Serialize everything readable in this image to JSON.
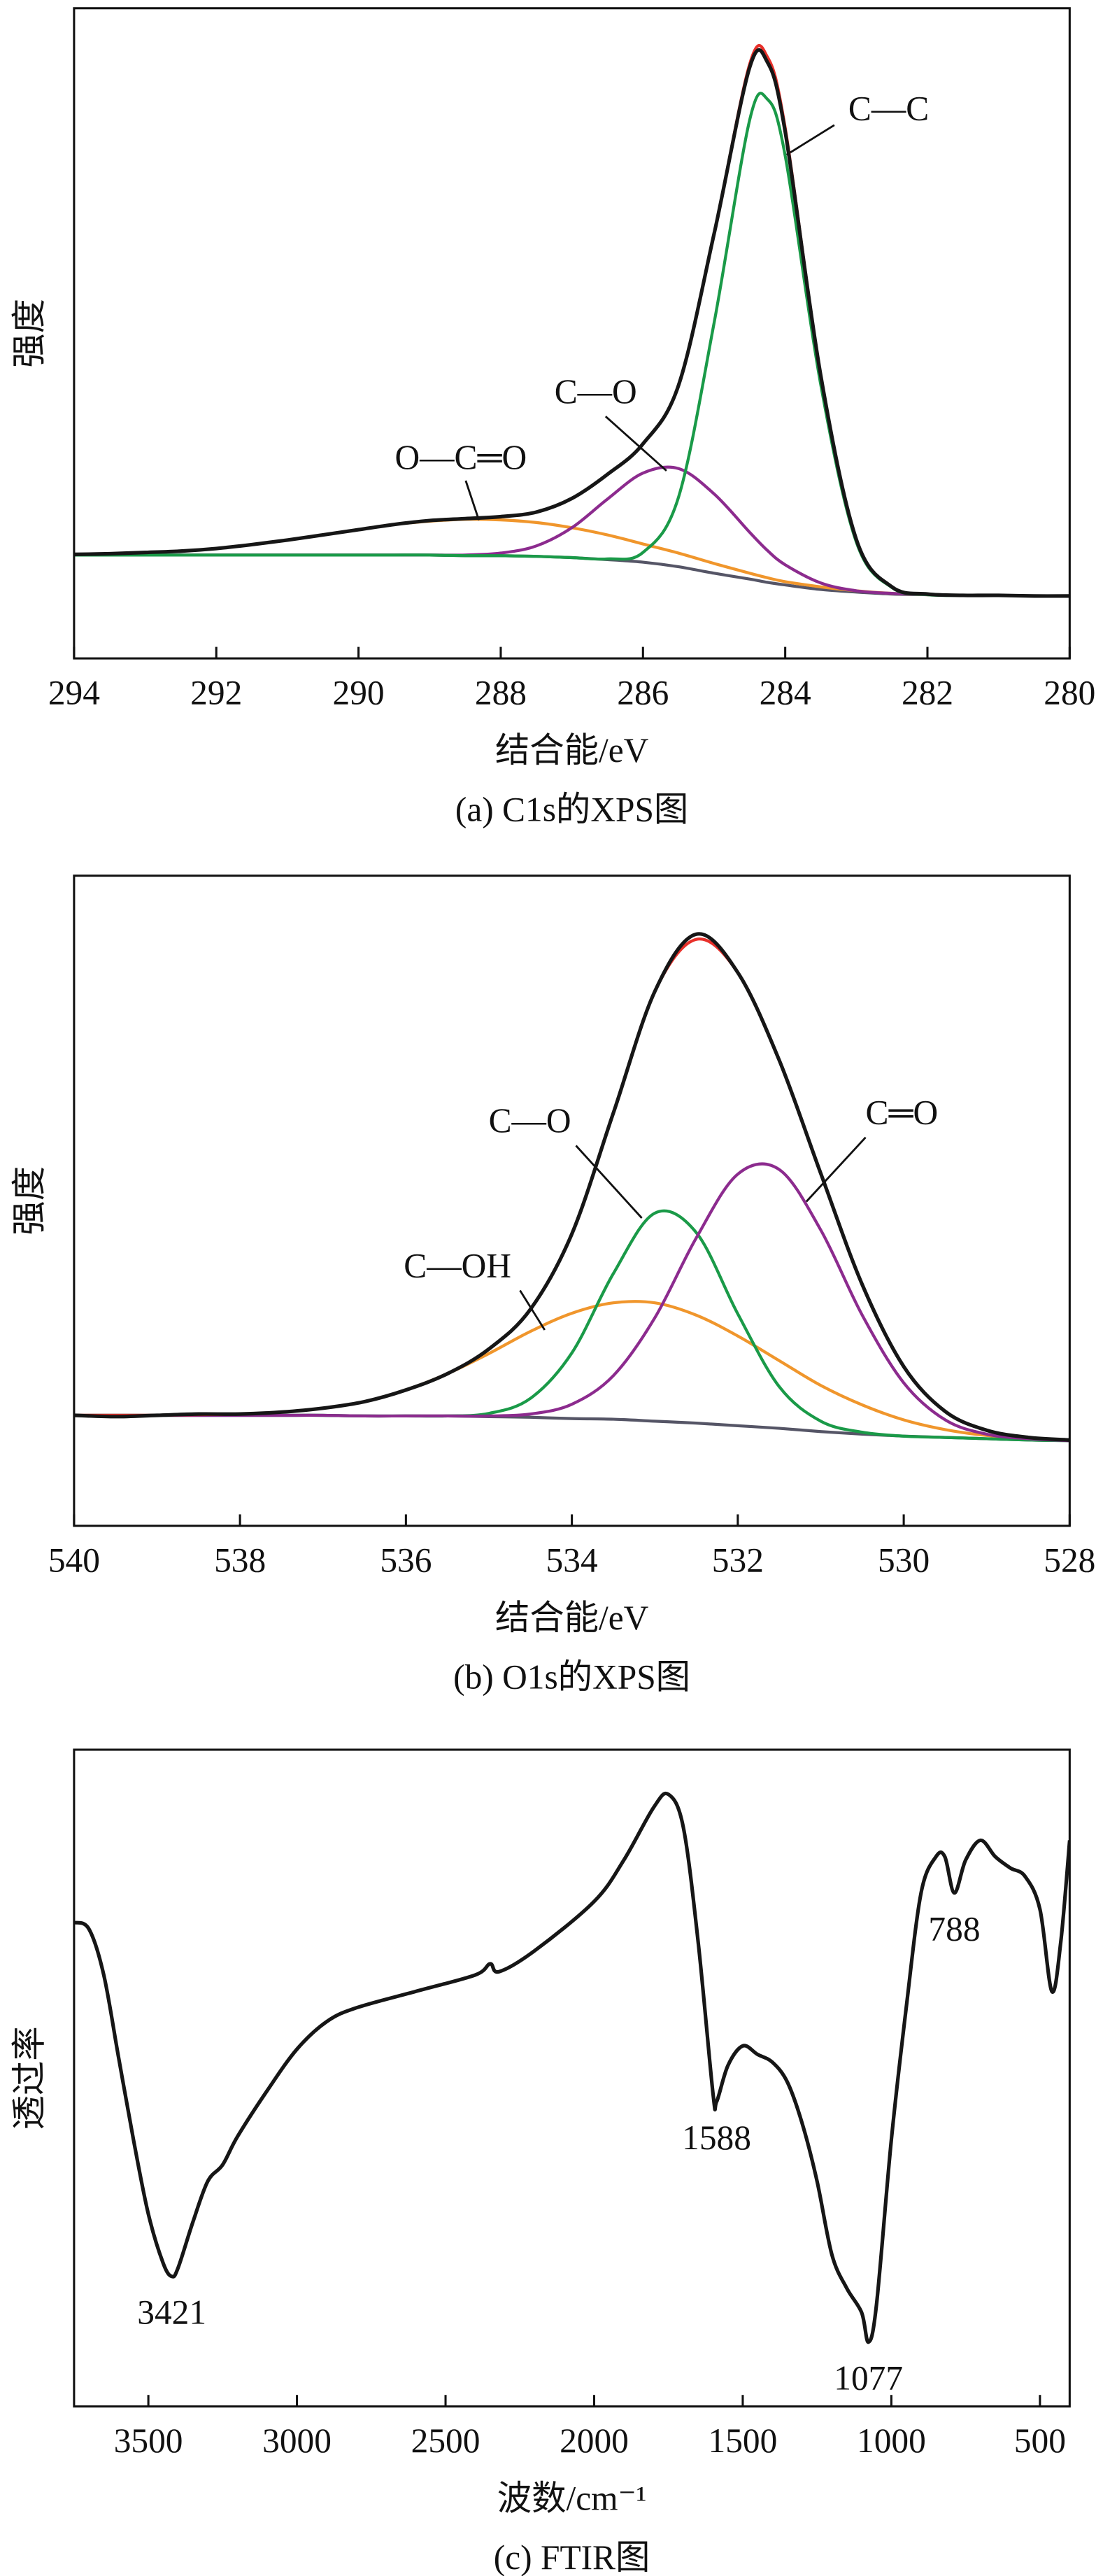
{
  "chart_data": [
    {
      "type": "line",
      "caption": "(a) C1s的XPS图",
      "x_label": "结合能/eV",
      "y_label": "强度",
      "xlim": [
        294,
        280
      ],
      "ylim": [
        0,
        100
      ],
      "xticks": [
        294,
        292,
        290,
        288,
        286,
        284,
        282,
        280
      ],
      "x": [
        294,
        293.5,
        293,
        292.5,
        292,
        291.5,
        291,
        290.5,
        290,
        289.5,
        289,
        288.5,
        288,
        287.5,
        287,
        286.5,
        286,
        285.5,
        285,
        284.5,
        284.25,
        284,
        283.5,
        283,
        282.5,
        282,
        281.5,
        281,
        280.5,
        280
      ],
      "series": [
        {
          "color": "#555566",
          "values": [
            15.9,
            15.9,
            15.9,
            15.9,
            15.9,
            15.9,
            15.9,
            15.9,
            15.9,
            15.9,
            15.9,
            15.8,
            15.8,
            15.7,
            15.5,
            15.2,
            14.8,
            14.1,
            13.1,
            12.2,
            11.7,
            11.3,
            10.6,
            10.2,
            9.9,
            9.8,
            9.7,
            9.7,
            9.6,
            9.6
          ]
        },
        {
          "name": "O—C═O",
          "color": "#f0962c",
          "values": [
            16.0,
            16.1,
            16.3,
            16.5,
            16.9,
            17.5,
            18.2,
            19.0,
            19.8,
            20.6,
            21.1,
            21.4,
            21.3,
            20.9,
            20.1,
            19.0,
            17.6,
            16.2,
            14.6,
            13.1,
            12.4,
            11.8,
            11.0,
            10.4,
            10.0,
            9.8,
            9.7,
            9.7,
            9.6,
            9.6
          ]
        },
        {
          "name": "C—O",
          "color": "#8c2b8e",
          "values": [
            15.9,
            15.9,
            15.9,
            15.9,
            15.9,
            15.9,
            15.9,
            15.9,
            15.9,
            15.9,
            15.9,
            15.9,
            16.2,
            17.3,
            20.1,
            24.5,
            28.5,
            29.2,
            25.3,
            19.4,
            16.6,
            14.4,
            11.6,
            10.4,
            10.0,
            9.8,
            9.7,
            9.7,
            9.6,
            9.6
          ]
        },
        {
          "name": "C—C",
          "color": "#1a9a48",
          "values": [
            15.9,
            15.9,
            15.9,
            15.9,
            15.9,
            15.9,
            15.9,
            15.9,
            15.9,
            15.9,
            15.9,
            15.8,
            15.8,
            15.7,
            15.5,
            15.3,
            16.3,
            24.8,
            51.6,
            82.8,
            86.0,
            77.3,
            42.1,
            17.9,
            10.9,
            9.8,
            9.7,
            9.7,
            9.6,
            9.6
          ]
        },
        {
          "color": "#e8302a",
          "values": [
            16.0,
            16.1,
            16.3,
            16.5,
            16.9,
            17.5,
            18.2,
            19.0,
            19.8,
            20.6,
            21.2,
            21.5,
            21.8,
            22.5,
            24.6,
            28.3,
            33.0,
            42.0,
            65.3,
            91.4,
            92.5,
            81.6,
            43.5,
            18.3,
            11.0,
            9.9,
            9.7,
            9.7,
            9.6,
            9.6
          ]
        },
        {
          "color": "#161616",
          "values": [
            16.0,
            16.1,
            16.3,
            16.5,
            16.9,
            17.5,
            18.2,
            19.0,
            19.8,
            20.6,
            21.2,
            21.5,
            21.8,
            22.5,
            24.6,
            28.3,
            33.0,
            42.0,
            65.3,
            90.9,
            91.7,
            81.0,
            43.5,
            18.3,
            11.0,
            9.9,
            9.7,
            9.7,
            9.6,
            9.6
          ]
        }
      ]
    },
    {
      "type": "line",
      "caption": "(b) O1s的XPS图",
      "x_label": "结合能/eV",
      "y_label": "强度",
      "xlim": [
        540,
        528
      ],
      "ylim": [
        0,
        100
      ],
      "xticks": [
        540,
        538,
        536,
        534,
        532,
        530,
        528
      ],
      "x": [
        540,
        539.5,
        539,
        538.5,
        538,
        537.5,
        537,
        536.5,
        536,
        535.5,
        535,
        534.5,
        534,
        533.5,
        533,
        532.5,
        532,
        531.5,
        531,
        530.5,
        530,
        529.5,
        529,
        528.5,
        528
      ],
      "series": [
        {
          "color": "#555566",
          "values": [
            17.0,
            17.0,
            17.0,
            17.0,
            17.0,
            17.0,
            17.0,
            16.9,
            16.9,
            16.9,
            16.8,
            16.7,
            16.5,
            16.4,
            16.1,
            15.8,
            15.4,
            15.0,
            14.5,
            14.1,
            13.8,
            13.6,
            13.4,
            13.2,
            13.1
          ]
        },
        {
          "name": "C—OH",
          "color": "#f0962c",
          "values": [
            17.0,
            17.0,
            17.0,
            17.1,
            17.2,
            17.5,
            18.1,
            19.1,
            20.9,
            23.4,
            26.5,
            29.9,
            32.7,
            34.3,
            34.3,
            32.4,
            29.2,
            25.4,
            21.6,
            18.6,
            16.3,
            14.8,
            13.9,
            13.5,
            13.2
          ]
        },
        {
          "name": "C—O",
          "color": "#1a9a48",
          "values": [
            17.0,
            17.0,
            17.0,
            17.0,
            17.0,
            17.0,
            17.0,
            16.9,
            16.9,
            16.9,
            17.3,
            19.6,
            26.6,
            38.8,
            48.1,
            45.1,
            32.6,
            21.4,
            16.1,
            14.4,
            13.8,
            13.6,
            13.4,
            13.2,
            13.1
          ]
        },
        {
          "name": "C═O",
          "color": "#8c2b8e",
          "values": [
            17.0,
            17.0,
            17.0,
            17.0,
            17.0,
            17.0,
            17.0,
            16.9,
            16.9,
            16.9,
            16.9,
            17.2,
            18.7,
            23.1,
            32.0,
            44.3,
            54.1,
            54.8,
            45.5,
            32.4,
            22.0,
            16.3,
            14.1,
            13.4,
            13.1
          ]
        },
        {
          "color": "#e8302a",
          "values": [
            17.0,
            17.0,
            17.0,
            17.1,
            17.2,
            17.5,
            18.1,
            19.1,
            20.9,
            23.4,
            27.2,
            33.3,
            44.9,
            63.5,
            82.2,
            90.2,
            85.1,
            71.6,
            54.2,
            37.1,
            24.5,
            17.6,
            14.7,
            13.6,
            13.2
          ]
        },
        {
          "color": "#161616",
          "values": [
            17.0,
            16.8,
            17.0,
            17.2,
            17.2,
            17.5,
            18.1,
            19.1,
            20.9,
            23.4,
            27.2,
            33.3,
            44.9,
            63.5,
            82.2,
            91.0,
            85.1,
            71.6,
            54.2,
            37.1,
            24.5,
            17.6,
            14.7,
            13.6,
            13.2
          ]
        }
      ]
    },
    {
      "type": "line",
      "caption": "(c) FTIR图",
      "x_label": "波数/cm⁻¹",
      "y_label": "透过率",
      "xlim": [
        3750,
        400
      ],
      "ylim": [
        0,
        100
      ],
      "xticks": [
        3500,
        3000,
        2500,
        2000,
        1500,
        1000,
        500
      ],
      "x": [
        3750,
        3700,
        3650,
        3600,
        3550,
        3500,
        3450,
        3421,
        3400,
        3350,
        3300,
        3250,
        3200,
        3100,
        3000,
        2900,
        2800,
        2600,
        2400,
        2350,
        2320,
        2200,
        2000,
        1900,
        1800,
        1750,
        1700,
        1650,
        1600,
        1588,
        1550,
        1500,
        1450,
        1400,
        1350,
        1300,
        1250,
        1200,
        1150,
        1100,
        1077,
        1050,
        1000,
        950,
        900,
        850,
        820,
        788,
        750,
        700,
        650,
        600,
        550,
        500,
        460,
        430,
        400
      ],
      "series": [
        {
          "color": "#161616",
          "values": [
            73.7,
            72.7,
            65.7,
            53.1,
            40.6,
            29.3,
            21.8,
            19.8,
            21.1,
            28.1,
            34.3,
            36.8,
            41.1,
            48.1,
            54.4,
            58.6,
            60.7,
            63.2,
            65.7,
            67.4,
            66.2,
            69.4,
            76.9,
            83.2,
            91.2,
            93.2,
            88.2,
            70.7,
            47.6,
            46.4,
            51.9,
            54.9,
            53.6,
            52.4,
            49.4,
            43.1,
            34.3,
            23.1,
            18.0,
            14.3,
            9.8,
            15.5,
            40.6,
            60.7,
            78.2,
            83.7,
            83.7,
            78.2,
            83.2,
            86.2,
            83.7,
            82.0,
            80.7,
            75.7,
            63.2,
            70.7,
            86.2
          ]
        }
      ],
      "peaks": [
        3421,
        1588,
        1077,
        788
      ]
    }
  ]
}
